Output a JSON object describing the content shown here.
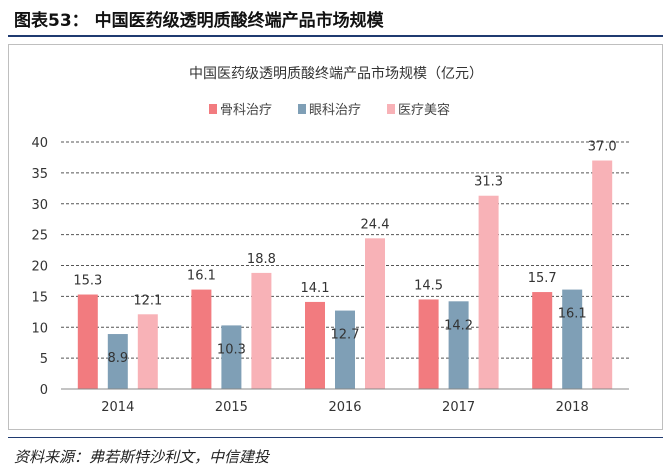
{
  "figure": {
    "title": "图表53： 中国医药级透明质酸终端产品市场规模",
    "source": "资料来源：弗若斯特沙利文，中信建投"
  },
  "chart_data": {
    "type": "bar",
    "title": "中国医药级透明质酸终端产品市场规模（亿元）",
    "xlabel": "",
    "ylabel": "",
    "categories": [
      "2014",
      "2015",
      "2016",
      "2017",
      "2018"
    ],
    "series": [
      {
        "name": "骨科治疗",
        "color": "#f27b7f",
        "values": [
          15.3,
          16.1,
          14.1,
          14.5,
          15.7
        ]
      },
      {
        "name": "眼科治疗",
        "color": "#7f9fb6",
        "values": [
          8.9,
          10.3,
          12.7,
          14.2,
          16.1
        ]
      },
      {
        "name": "医疗美容",
        "color": "#f8b2b7",
        "values": [
          12.1,
          18.8,
          24.4,
          31.3,
          37.0
        ]
      }
    ],
    "ylim": [
      0,
      40
    ],
    "yticks": [
      "0",
      "5",
      "10",
      "15",
      "20",
      "25",
      "30",
      "35",
      "40"
    ],
    "data_labels": [
      [
        "15.3",
        "16.1",
        "14.1",
        "14.5",
        "15.7"
      ],
      [
        "8.9",
        "10.3",
        "12.7",
        "14.2",
        "16.1"
      ],
      [
        "12.1",
        "18.8",
        "24.4",
        "31.3",
        "37.0"
      ]
    ],
    "legend_position": "top-left",
    "grid": "horizontal-dashed"
  }
}
